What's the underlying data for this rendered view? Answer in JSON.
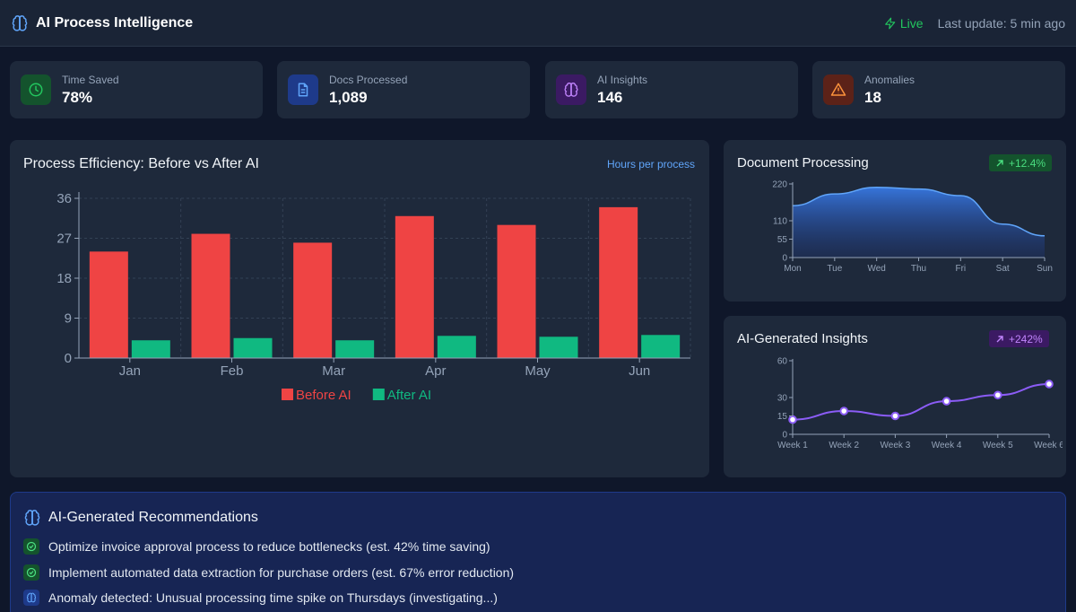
{
  "header": {
    "title": "AI Process Intelligence",
    "status": "Live",
    "last_update": "Last update: 5 min ago"
  },
  "kpis": [
    {
      "label": "Time Saved",
      "value": "78%",
      "icon": "clock-icon",
      "color": "#22c55e"
    },
    {
      "label": "Docs Processed",
      "value": "1,089",
      "icon": "document-icon",
      "color": "#3b82f6"
    },
    {
      "label": "AI Insights",
      "value": "146",
      "icon": "brain-icon",
      "color": "#a855f7"
    },
    {
      "label": "Anomalies",
      "value": "18",
      "icon": "warning-icon",
      "color": "#f97316"
    }
  ],
  "efficiency": {
    "title": "Process Efficiency: Before vs After AI",
    "unit_link": "Hours per process"
  },
  "doc_processing": {
    "title": "Document Processing",
    "badge": "+12.4%"
  },
  "ai_insights": {
    "title": "AI-Generated Insights",
    "badge": "+242%"
  },
  "chart_data": [
    {
      "type": "bar",
      "title": "Process Efficiency: Before vs After AI",
      "categories": [
        "Jan",
        "Feb",
        "Mar",
        "Apr",
        "May",
        "Jun"
      ],
      "series": [
        {
          "name": "Before AI",
          "values": [
            24,
            28,
            26,
            32,
            30,
            34
          ],
          "color": "#ef4444"
        },
        {
          "name": "After AI",
          "values": [
            4,
            4.5,
            4,
            5,
            4.8,
            5.2
          ],
          "color": "#10b981"
        }
      ],
      "yticks": [
        0,
        9,
        18,
        27,
        36
      ],
      "ylim": [
        0,
        36
      ],
      "grid": true,
      "legend": "bottom"
    },
    {
      "type": "area",
      "title": "Document Processing",
      "categories": [
        "Mon",
        "Tue",
        "Wed",
        "Thu",
        "Fri",
        "Sat",
        "Sun"
      ],
      "values": [
        155,
        190,
        210,
        205,
        185,
        100,
        65
      ],
      "yticks": [
        0,
        55,
        110,
        220
      ],
      "ylim": [
        0,
        220
      ],
      "color": "#3b82f6"
    },
    {
      "type": "line",
      "title": "AI-Generated Insights",
      "categories": [
        "Week 1",
        "Week 2",
        "Week 3",
        "Week 4",
        "Week 5",
        "Week 6"
      ],
      "values": [
        12,
        19,
        15,
        27,
        32,
        41
      ],
      "yticks": [
        0,
        15,
        30,
        60
      ],
      "ylim": [
        0,
        60
      ],
      "color": "#8b5cf6"
    }
  ],
  "recommendations": {
    "title": "AI-Generated Recommendations",
    "items": [
      {
        "text": "Optimize invoice approval process to reduce bottlenecks (est. 42% time saving)",
        "icon": "check-icon"
      },
      {
        "text": "Implement automated data extraction for purchase orders (est. 67% error reduction)",
        "icon": "check-icon"
      },
      {
        "text": "Anomaly detected: Unusual processing time spike on Thursdays (investigating...)",
        "icon": "brain-icon"
      }
    ]
  }
}
